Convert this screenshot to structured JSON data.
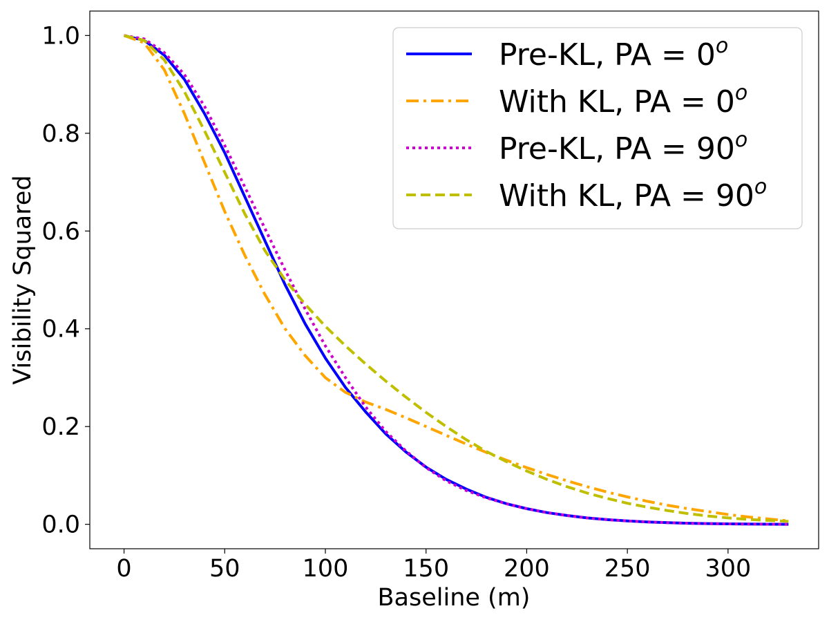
{
  "chart_data": {
    "type": "line",
    "title": "",
    "xlabel": "Baseline (m)",
    "ylabel": "Visibility Squared",
    "xlim": [
      -17,
      345
    ],
    "ylim": [
      -0.05,
      1.05
    ],
    "xticks": [
      0,
      50,
      100,
      150,
      200,
      250,
      300
    ],
    "xtick_labels": [
      "0",
      "50",
      "100",
      "150",
      "200",
      "250",
      "300"
    ],
    "yticks": [
      0.0,
      0.2,
      0.4,
      0.6,
      0.8,
      1.0
    ],
    "ytick_labels": [
      "0.0",
      "0.2",
      "0.4",
      "0.6",
      "0.8",
      "1.0"
    ],
    "grid": false,
    "legend_position": "top-right",
    "series": [
      {
        "name": "Pre-KL, PA = 0",
        "label_main": "Pre-KL, PA = 0",
        "label_sup": "o",
        "color": "#0000ff",
        "style": "solid",
        "x": [
          0,
          10,
          20,
          30,
          40,
          50,
          60,
          70,
          80,
          90,
          100,
          110,
          120,
          130,
          140,
          150,
          160,
          170,
          180,
          190,
          200,
          210,
          220,
          230,
          240,
          250,
          260,
          270,
          280,
          290,
          300,
          310,
          320,
          330
        ],
        "y": [
          1.0,
          0.99,
          0.96,
          0.91,
          0.84,
          0.76,
          0.67,
          0.58,
          0.49,
          0.41,
          0.34,
          0.28,
          0.23,
          0.185,
          0.148,
          0.117,
          0.092,
          0.072,
          0.055,
          0.042,
          0.032,
          0.024,
          0.018,
          0.013,
          0.0095,
          0.0068,
          0.0048,
          0.0033,
          0.0022,
          0.0014,
          0.0009,
          0.0005,
          0.0002,
          0.0001
        ]
      },
      {
        "name": "With KL, PA = 0",
        "label_main": "With KL, PA = 0",
        "label_sup": "o",
        "color": "#ffa500",
        "style": "dashdot",
        "x": [
          0,
          10,
          20,
          30,
          40,
          50,
          60,
          70,
          80,
          90,
          100,
          110,
          120,
          130,
          140,
          150,
          160,
          170,
          180,
          190,
          200,
          210,
          220,
          230,
          240,
          250,
          260,
          270,
          280,
          290,
          300,
          310,
          320,
          330
        ],
        "y": [
          1.0,
          0.985,
          0.93,
          0.84,
          0.74,
          0.64,
          0.55,
          0.47,
          0.4,
          0.345,
          0.3,
          0.27,
          0.25,
          0.235,
          0.218,
          0.2,
          0.182,
          0.164,
          0.147,
          0.131,
          0.116,
          0.102,
          0.089,
          0.077,
          0.066,
          0.056,
          0.047,
          0.039,
          0.032,
          0.026,
          0.02,
          0.015,
          0.011,
          0.007
        ]
      },
      {
        "name": "Pre-KL, PA = 90",
        "label_main": "Pre-KL, PA = 90",
        "label_sup": "o",
        "color": "#cc00cc",
        "style": "dotted",
        "x": [
          0,
          10,
          20,
          30,
          40,
          50,
          60,
          70,
          80,
          90,
          100,
          110,
          120,
          130,
          140,
          150,
          160,
          170,
          180,
          190,
          200,
          210,
          220,
          230,
          240,
          250,
          260,
          270,
          280,
          290,
          300,
          310,
          320,
          330
        ],
        "y": [
          1.0,
          0.993,
          0.965,
          0.92,
          0.855,
          0.775,
          0.69,
          0.605,
          0.52,
          0.44,
          0.365,
          0.3,
          0.24,
          0.19,
          0.15,
          0.116,
          0.089,
          0.069,
          0.054,
          0.042,
          0.032,
          0.024,
          0.018,
          0.013,
          0.0095,
          0.0068,
          0.0048,
          0.0033,
          0.0022,
          0.0014,
          0.0009,
          0.0005,
          0.0002,
          0.0001
        ]
      },
      {
        "name": "With KL, PA = 90",
        "label_main": "With KL, PA = 90",
        "label_sup": "o",
        "color": "#bfbf00",
        "style": "dashed",
        "x": [
          0,
          10,
          20,
          30,
          40,
          50,
          60,
          70,
          80,
          90,
          100,
          110,
          120,
          130,
          140,
          150,
          160,
          170,
          180,
          190,
          200,
          210,
          220,
          230,
          240,
          250,
          260,
          270,
          280,
          290,
          300,
          310,
          320,
          330
        ],
        "y": [
          1.0,
          0.99,
          0.95,
          0.885,
          0.805,
          0.72,
          0.635,
          0.56,
          0.5,
          0.45,
          0.405,
          0.365,
          0.328,
          0.293,
          0.26,
          0.229,
          0.2,
          0.173,
          0.149,
          0.128,
          0.109,
          0.092,
          0.077,
          0.064,
          0.053,
          0.043,
          0.035,
          0.028,
          0.022,
          0.017,
          0.013,
          0.01,
          0.008,
          0.006
        ]
      }
    ]
  }
}
